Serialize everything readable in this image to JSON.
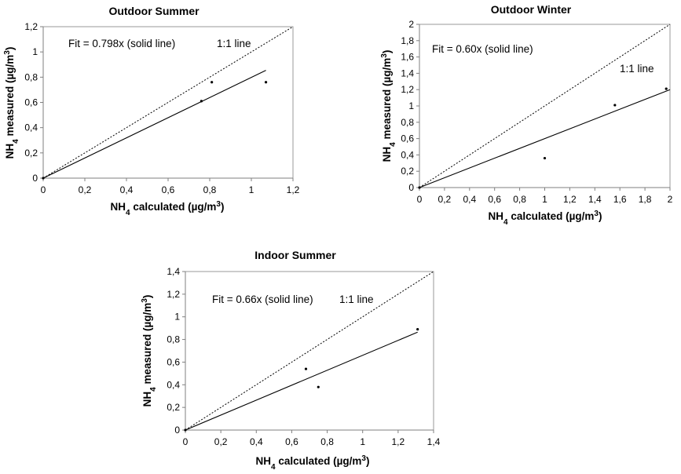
{
  "chart_data": [
    {
      "type": "scatter",
      "title": "Outdoor Summer",
      "xlabel": "NH4 calculated (µg/m3)",
      "ylabel": "NH4 measured (µg/m3)",
      "xlim": [
        0,
        1.2
      ],
      "ylim": [
        0,
        1.2
      ],
      "xticks": [
        "0",
        "0,2",
        "0,4",
        "0,6",
        "0,8",
        "1",
        "1,2"
      ],
      "yticks": [
        "0",
        "0,2",
        "0,4",
        "0,6",
        "0,8",
        "1",
        "1,2"
      ],
      "fit_label": "Fit = 0.798x (solid line)",
      "line_label": "1:1 line",
      "fit_slope": 0.798,
      "fit_x_max": 1.07,
      "points": [
        [
          0,
          0
        ],
        [
          0.76,
          0.61
        ],
        [
          0.81,
          0.76
        ],
        [
          1.07,
          0.76
        ]
      ],
      "grid": false
    },
    {
      "type": "scatter",
      "title": "Outdoor Winter",
      "xlabel": "NH4 calculated (µg/m3)",
      "ylabel": "NH4 measured (µg/m3)",
      "xlim": [
        0,
        2
      ],
      "ylim": [
        0,
        2
      ],
      "xticks": [
        "0",
        "0,2",
        "0,4",
        "0,6",
        "0,8",
        "1",
        "1,2",
        "1,4",
        "1,6",
        "1,8",
        "2"
      ],
      "yticks": [
        "0",
        "0,2",
        "0,4",
        "0,6",
        "0,8",
        "1",
        "1,2",
        "1,4",
        "1,6",
        "1,8",
        "2"
      ],
      "fit_label": "Fit = 0.60x (solid line)",
      "line_label": "1:1 line",
      "fit_slope": 0.6,
      "fit_x_max": 2,
      "points": [
        [
          0,
          0
        ],
        [
          1.0,
          0.36
        ],
        [
          1.56,
          1.01
        ],
        [
          1.97,
          1.21
        ]
      ],
      "grid": false
    },
    {
      "type": "scatter",
      "title": "Indoor Summer",
      "xlabel": "NH4 calculated (µg/m3)",
      "ylabel": "NH4 measured (µg/m3)",
      "xlim": [
        0,
        1.4
      ],
      "ylim": [
        0,
        1.4
      ],
      "xticks": [
        "0",
        "0,2",
        "0,4",
        "0,6",
        "0,8",
        "1",
        "1,2",
        "1,4"
      ],
      "yticks": [
        "0",
        "0,2",
        "0,4",
        "0,6",
        "0,8",
        "1",
        "1,2",
        "1,4"
      ],
      "fit_label": "Fit = 0.66x (solid line)",
      "line_label": "1:1 line",
      "fit_slope": 0.66,
      "fit_x_max": 1.31,
      "points": [
        [
          0,
          0
        ],
        [
          0.68,
          0.54
        ],
        [
          0.75,
          0.38
        ],
        [
          1.31,
          0.89
        ]
      ],
      "grid": false
    }
  ]
}
